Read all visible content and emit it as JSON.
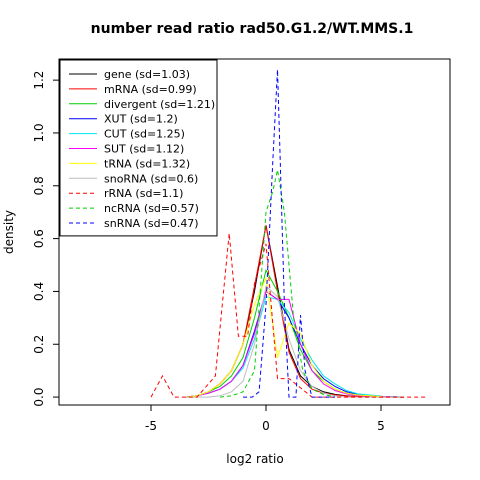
{
  "chart_data": {
    "type": "line",
    "title": "number read ratio rad50.G1.2/WT.MMS.1",
    "xlabel": "log2 ratio",
    "ylabel": "density",
    "xlim": [
      -9,
      8
    ],
    "ylim": [
      -0.03,
      1.28
    ],
    "xticks": [
      -5,
      0,
      5
    ],
    "yticks": [
      0.0,
      0.2,
      0.4,
      0.6,
      0.8,
      1.0,
      1.2
    ],
    "xtick_labels": [
      "-5",
      "0",
      "5"
    ],
    "ytick_labels": [
      "0.0",
      "0.2",
      "0.4",
      "0.6",
      "0.8",
      "1.0",
      "1.2"
    ],
    "grid": false,
    "legend_position": "top-left",
    "series": [
      {
        "name": "gene (sd=1.03)",
        "color": "#000000",
        "dashed": false,
        "x": [
          -3.5,
          -3,
          -2.5,
          -2,
          -1.5,
          -1,
          -0.5,
          0,
          0.5,
          1,
          1.5,
          2,
          2.5,
          3,
          3.5,
          4,
          5,
          6
        ],
        "y": [
          0,
          0.005,
          0.02,
          0.05,
          0.1,
          0.2,
          0.4,
          0.65,
          0.42,
          0.18,
          0.08,
          0.04,
          0.02,
          0.01,
          0.005,
          0.002,
          0.001,
          0
        ]
      },
      {
        "name": "mRNA (sd=0.99)",
        "color": "#ff0000",
        "dashed": false,
        "x": [
          -3.5,
          -3,
          -2.5,
          -2,
          -1.5,
          -1,
          -0.5,
          0,
          0.5,
          1,
          1.5,
          2,
          2.5,
          3,
          3.5,
          4,
          5,
          6
        ],
        "y": [
          0,
          0.005,
          0.02,
          0.05,
          0.1,
          0.2,
          0.42,
          0.65,
          0.4,
          0.17,
          0.07,
          0.03,
          0.015,
          0.008,
          0.004,
          0.002,
          0,
          0
        ]
      },
      {
        "name": "divergent (sd=1.21)",
        "color": "#00cd00",
        "dashed": false,
        "x": [
          -3.5,
          -3,
          -2.5,
          -2,
          -1.5,
          -1,
          -0.5,
          0,
          0.5,
          1,
          1.5,
          2,
          2.5,
          3,
          3.5,
          4,
          5,
          6
        ],
        "y": [
          0,
          0.005,
          0.02,
          0.04,
          0.08,
          0.15,
          0.3,
          0.48,
          0.4,
          0.3,
          0.18,
          0.1,
          0.06,
          0.03,
          0.015,
          0.008,
          0.002,
          0
        ]
      },
      {
        "name": "XUT (sd=1.2)",
        "color": "#0000ff",
        "dashed": false,
        "x": [
          -3.5,
          -3,
          -2.5,
          -2,
          -1.5,
          -1,
          -0.5,
          0,
          0.5,
          1,
          1.5,
          2,
          2.5,
          3,
          3.5,
          4,
          5,
          6
        ],
        "y": [
          0,
          0.005,
          0.015,
          0.03,
          0.06,
          0.12,
          0.25,
          0.4,
          0.37,
          0.3,
          0.2,
          0.12,
          0.07,
          0.04,
          0.02,
          0.01,
          0.003,
          0
        ]
      },
      {
        "name": "CUT (sd=1.25)",
        "color": "#00e5ee",
        "dashed": false,
        "x": [
          -3.5,
          -3,
          -2.5,
          -2,
          -1.5,
          -1,
          -0.5,
          0,
          0.5,
          1,
          1.5,
          2,
          2.5,
          3,
          3.5,
          4,
          5,
          6
        ],
        "y": [
          0,
          0.005,
          0.015,
          0.03,
          0.06,
          0.11,
          0.22,
          0.38,
          0.37,
          0.32,
          0.22,
          0.14,
          0.08,
          0.05,
          0.025,
          0.012,
          0.004,
          0
        ]
      },
      {
        "name": "SUT (sd=1.12)",
        "color": "#ff00ff",
        "dashed": false,
        "x": [
          -3.5,
          -3,
          -2.5,
          -2,
          -1.5,
          -1,
          -0.5,
          0,
          0.5,
          1,
          1.5,
          2,
          2.5,
          3,
          3.5,
          4,
          5,
          6
        ],
        "y": [
          0,
          0.005,
          0.015,
          0.03,
          0.06,
          0.12,
          0.24,
          0.4,
          0.37,
          0.37,
          0.2,
          0.1,
          0.05,
          0.025,
          0.012,
          0.006,
          0.002,
          0
        ]
      },
      {
        "name": "tRNA (sd=1.32)",
        "color": "#ffff00",
        "dashed": false,
        "x": [
          -3.5,
          -3,
          -2.5,
          -2,
          -1.5,
          -1,
          -0.5,
          0,
          0.5,
          1,
          1.5,
          2,
          2.5,
          3,
          3.5,
          4,
          5,
          6
        ],
        "y": [
          0,
          0.005,
          0.02,
          0.05,
          0.1,
          0.2,
          0.35,
          0.45,
          0.15,
          0.28,
          0.24,
          0.12,
          0.06,
          0.03,
          0.015,
          0.008,
          0.002,
          0
        ]
      },
      {
        "name": "snoRNA (sd=0.6)",
        "color": "#bebebe",
        "dashed": false,
        "x": [
          -3.5,
          -3,
          -2.5,
          -2,
          -1.5,
          -1,
          -0.5,
          0,
          0.5,
          1,
          1.5,
          2,
          2.5,
          3,
          3.5,
          4,
          5,
          6
        ],
        "y": [
          0,
          0,
          0,
          0.005,
          0.02,
          0.06,
          0.2,
          0.42,
          0.38,
          0.22,
          0.1,
          0.04,
          0.015,
          0.005,
          0,
          0,
          0,
          0
        ]
      },
      {
        "name": "rRNA (sd=1.1)",
        "color": "#ff0000",
        "dashed": true,
        "x": [
          -5,
          -4.5,
          -4,
          -3,
          -2.2,
          -1.6,
          -1.2,
          -0.8,
          -0.5,
          0,
          0.5,
          1,
          2,
          3,
          5,
          7
        ],
        "y": [
          0,
          0.08,
          0,
          0,
          0.08,
          0.62,
          0.23,
          0.23,
          0.43,
          0.58,
          0.07,
          0.07,
          0,
          0,
          0,
          0
        ]
      },
      {
        "name": "ncRNA (sd=0.57)",
        "color": "#00cd00",
        "dashed": true,
        "x": [
          -2,
          -1.5,
          -1,
          -0.5,
          0,
          0.3,
          0.5,
          0.8,
          1.2,
          1.6,
          2,
          2.5,
          3
        ],
        "y": [
          0,
          0.005,
          0.02,
          0.1,
          0.7,
          0.78,
          0.86,
          0.7,
          0.3,
          0.1,
          0.03,
          0.01,
          0
        ]
      },
      {
        "name": "snRNA (sd=0.47)",
        "color": "#0000ff",
        "dashed": true,
        "x": [
          -1,
          -0.6,
          -0.3,
          0,
          0.3,
          0.5,
          0.6,
          0.8,
          1,
          1.3,
          1.5,
          1.7,
          2,
          3
        ],
        "y": [
          0,
          0,
          0.02,
          0.35,
          0.9,
          1.24,
          0.95,
          0.35,
          0,
          0,
          0.31,
          0.1,
          0,
          0
        ]
      }
    ]
  }
}
